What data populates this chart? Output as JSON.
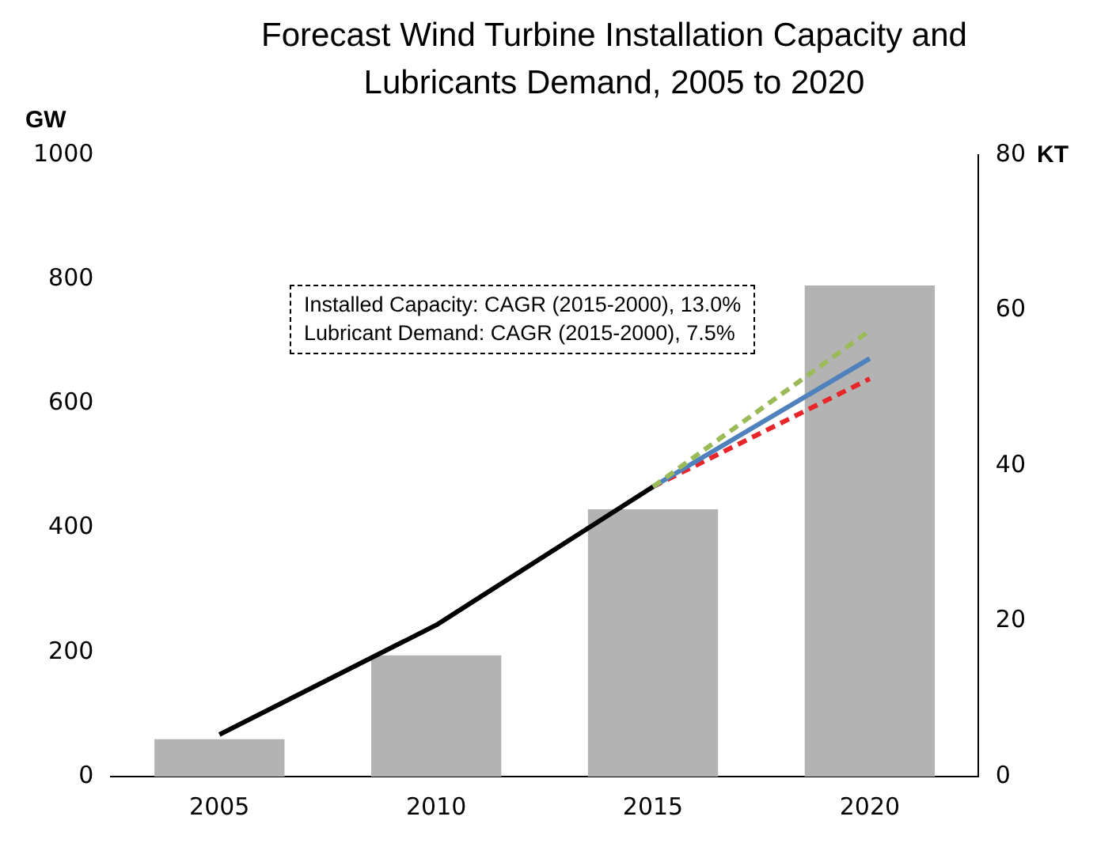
{
  "chart_data": {
    "type": "bar",
    "title": "Forecast Wind Turbine Installation Capacity and Lubricants Demand, 2005 to 2020",
    "ylabel": "GW",
    "y2label": "KT",
    "categories": [
      "2005",
      "2010",
      "2015",
      "2020"
    ],
    "series": [
      {
        "color": "#b3b3b3",
        "values": [
          60,
          195,
          430,
          790
        ]
      },
      {
        "type": "line",
        "axis": "y2",
        "color": "#000000",
        "line_style": "solid",
        "values": [
          5.4,
          19.5,
          37.3,
          null
        ]
      },
      {
        "type": "line",
        "axis": "y2",
        "color": "#9bbb59",
        "line_style": "dashed",
        "values": [
          null,
          null,
          37.3,
          57.4
        ]
      },
      {
        "type": "line",
        "axis": "y2",
        "color": "#4f81bd",
        "line_style": "solid",
        "values": [
          null,
          null,
          37.3,
          53.8
        ]
      },
      {
        "type": "line",
        "axis": "y2",
        "color": "#e8262a",
        "line_style": "dashed",
        "values": [
          null,
          null,
          37.3,
          51.2
        ]
      }
    ],
    "ylim": [
      0,
      1000
    ],
    "yticks": [
      0,
      200,
      400,
      600,
      800,
      1000
    ],
    "y2lim": [
      0,
      80
    ],
    "y2ticks": [
      0,
      20,
      40,
      60,
      80
    ],
    "grid": false,
    "legend": false,
    "annotations": [
      "Installed Capacity: CAGR (2015-2000), 13.0%",
      "Lubricant Demand: CAGR (2015-2000), 7.5%"
    ]
  }
}
